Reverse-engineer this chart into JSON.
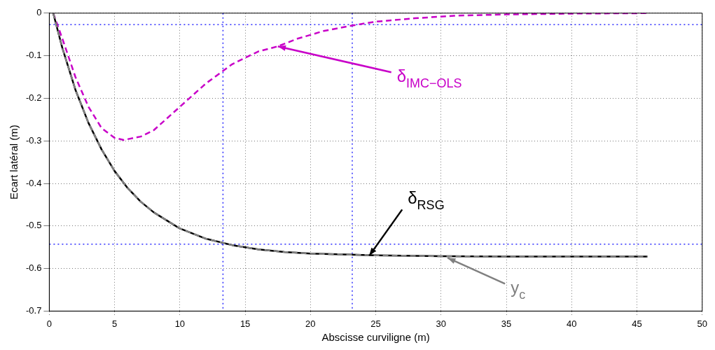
{
  "chart_data": {
    "type": "line",
    "xlabel": "Abscisse curviligne (m)",
    "ylabel": "Ecart latéral (m)",
    "xlim": [
      0,
      50
    ],
    "xticks": [
      0,
      5,
      10,
      15,
      20,
      25,
      30,
      35,
      40,
      45,
      50
    ],
    "ylim": [
      -0.7,
      0
    ],
    "yticks": [
      -0.7,
      -0.6,
      -0.5,
      -0.4,
      -0.3,
      -0.2,
      -0.1,
      0
    ],
    "grid": true,
    "legend": false,
    "marker": "none",
    "series": [
      {
        "color": "#c800c8",
        "line_style": "dashed",
        "x": [
          0.3,
          1,
          2,
          3,
          4,
          5,
          5.7,
          7,
          8,
          10,
          12,
          14,
          16,
          17.5,
          19,
          21,
          23,
          25,
          28,
          31,
          35,
          40,
          45.8
        ],
        "values": [
          0,
          -0.06,
          -0.15,
          -0.22,
          -0.27,
          -0.293,
          -0.298,
          -0.29,
          -0.275,
          -0.22,
          -0.165,
          -0.12,
          -0.09,
          -0.078,
          -0.06,
          -0.042,
          -0.03,
          -0.02,
          -0.012,
          -0.006,
          -0.003,
          -0.001,
          0
        ]
      },
      {
        "color": "#000000",
        "line_style": "solid",
        "x": [
          0.3,
          1,
          2,
          3,
          4,
          5,
          6,
          7,
          8,
          10,
          12,
          14,
          16,
          18,
          20,
          25,
          30,
          35,
          40,
          45.8
        ],
        "values": [
          0,
          -0.082,
          -0.18,
          -0.258,
          -0.32,
          -0.371,
          -0.411,
          -0.443,
          -0.468,
          -0.506,
          -0.53,
          -0.545,
          -0.555,
          -0.561,
          -0.565,
          -0.569,
          -0.571,
          -0.572,
          -0.572,
          -0.572
        ]
      },
      {
        "color": "#808080",
        "line_style": "dashed",
        "x": [
          0.3,
          1,
          2,
          3,
          4,
          5,
          6,
          7,
          8,
          10,
          12,
          14,
          16,
          18,
          20,
          25,
          30,
          35,
          40,
          45.8
        ],
        "values": [
          0,
          -0.082,
          -0.18,
          -0.258,
          -0.32,
          -0.371,
          -0.411,
          -0.443,
          -0.468,
          -0.506,
          -0.53,
          -0.545,
          -0.555,
          -0.561,
          -0.565,
          -0.569,
          -0.571,
          -0.572,
          -0.572,
          -0.572
        ]
      }
    ],
    "ref_lines": [
      {
        "axis": "x",
        "value": 13.3,
        "color": "#0000ff",
        "line_style": "dotted"
      },
      {
        "axis": "x",
        "value": 23.2,
        "color": "#0000ff",
        "line_style": "dotted"
      },
      {
        "axis": "y",
        "value": -0.027,
        "color": "#0000ff",
        "line_style": "dotted"
      },
      {
        "axis": "y",
        "value": -0.543,
        "color": "#0000ff",
        "line_style": "dotted"
      }
    ],
    "annotations": [
      {
        "text": "δ$_{IMC−OLS}$",
        "x": 17.5,
        "y": -0.078
      },
      {
        "text": "δ$_{RSG}$",
        "x": 24.5,
        "y": -0.57
      },
      {
        "text": "y$_{c}$",
        "x": 30.5,
        "y": -0.575
      }
    ]
  }
}
